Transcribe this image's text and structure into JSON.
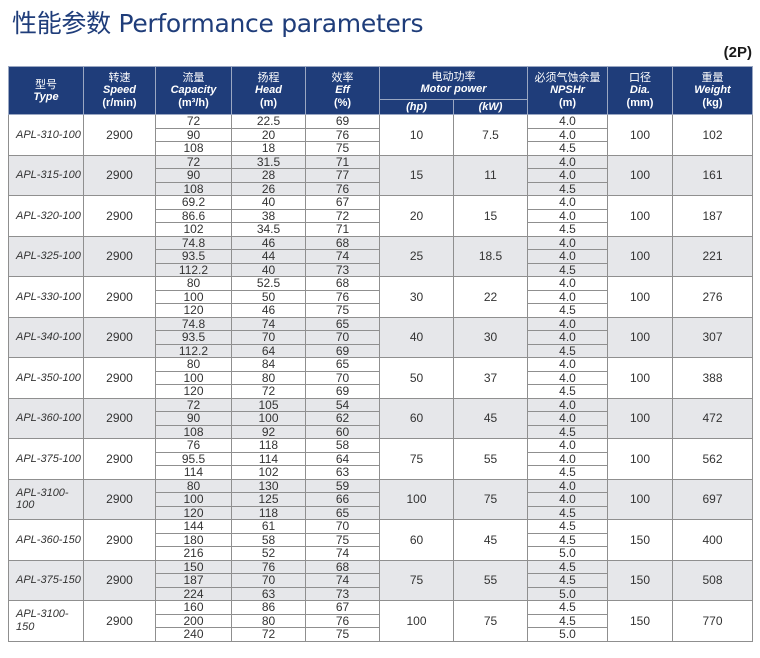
{
  "title": "性能参数 Performance parameters",
  "tag": "(2P)",
  "headers": {
    "type": {
      "cn": "型号",
      "en": "Type"
    },
    "speed": {
      "cn": "转速",
      "en": "Speed",
      "unit": "(r/min)"
    },
    "capacity": {
      "cn": "流量",
      "en": "Capacity",
      "unit": "(m³/h)"
    },
    "head": {
      "cn": "扬程",
      "en": "Head",
      "unit": "(m)"
    },
    "eff": {
      "cn": "效率",
      "en": "Eff",
      "unit": "(%)"
    },
    "motor": {
      "cn": "电动功率",
      "en": "Motor power",
      "unit_hp": "(hp)",
      "unit_kw": "(kW)"
    },
    "npsh": {
      "cn": "必须气蚀余量",
      "en": "NPSHr",
      "unit": "(m)"
    },
    "dia": {
      "cn": "口径",
      "en": "Dia.",
      "unit": "(mm)"
    },
    "weight": {
      "cn": "重量",
      "en": "Weight",
      "unit": "(kg)"
    }
  },
  "rows": [
    {
      "type": "APL-310-100",
      "speed": "2900",
      "capacity": [
        "72",
        "90",
        "108"
      ],
      "head": [
        "22.5",
        "20",
        "18"
      ],
      "eff": [
        "69",
        "76",
        "75"
      ],
      "hp": "10",
      "kw": "7.5",
      "npsh": [
        "4.0",
        "4.0",
        "4.5"
      ],
      "dia": "100",
      "weight": "102"
    },
    {
      "type": "APL-315-100",
      "speed": "2900",
      "capacity": [
        "72",
        "90",
        "108"
      ],
      "head": [
        "31.5",
        "28",
        "26"
      ],
      "eff": [
        "71",
        "77",
        "76"
      ],
      "hp": "15",
      "kw": "11",
      "npsh": [
        "4.0",
        "4.0",
        "4.5"
      ],
      "dia": "100",
      "weight": "161"
    },
    {
      "type": "APL-320-100",
      "speed": "2900",
      "capacity": [
        "69.2",
        "86.6",
        "102"
      ],
      "head": [
        "40",
        "38",
        "34.5"
      ],
      "eff": [
        "67",
        "72",
        "71"
      ],
      "hp": "20",
      "kw": "15",
      "npsh": [
        "4.0",
        "4.0",
        "4.5"
      ],
      "dia": "100",
      "weight": "187"
    },
    {
      "type": "APL-325-100",
      "speed": "2900",
      "capacity": [
        "74.8",
        "93.5",
        "112.2"
      ],
      "head": [
        "46",
        "44",
        "40"
      ],
      "eff": [
        "68",
        "74",
        "73"
      ],
      "hp": "25",
      "kw": "18.5",
      "npsh": [
        "4.0",
        "4.0",
        "4.5"
      ],
      "dia": "100",
      "weight": "221"
    },
    {
      "type": "APL-330-100",
      "speed": "2900",
      "capacity": [
        "80",
        "100",
        "120"
      ],
      "head": [
        "52.5",
        "50",
        "46"
      ],
      "eff": [
        "68",
        "76",
        "75"
      ],
      "hp": "30",
      "kw": "22",
      "npsh": [
        "4.0",
        "4.0",
        "4.5"
      ],
      "dia": "100",
      "weight": "276"
    },
    {
      "type": "APL-340-100",
      "speed": "2900",
      "capacity": [
        "74.8",
        "93.5",
        "112.2"
      ],
      "head": [
        "74",
        "70",
        "64"
      ],
      "eff": [
        "65",
        "70",
        "69"
      ],
      "hp": "40",
      "kw": "30",
      "npsh": [
        "4.0",
        "4.0",
        "4.5"
      ],
      "dia": "100",
      "weight": "307"
    },
    {
      "type": "APL-350-100",
      "speed": "2900",
      "capacity": [
        "80",
        "100",
        "120"
      ],
      "head": [
        "84",
        "80",
        "72"
      ],
      "eff": [
        "65",
        "70",
        "69"
      ],
      "hp": "50",
      "kw": "37",
      "npsh": [
        "4.0",
        "4.0",
        "4.5"
      ],
      "dia": "100",
      "weight": "388"
    },
    {
      "type": "APL-360-100",
      "speed": "2900",
      "capacity": [
        "72",
        "90",
        "108"
      ],
      "head": [
        "105",
        "100",
        "92"
      ],
      "eff": [
        "54",
        "62",
        "60"
      ],
      "hp": "60",
      "kw": "45",
      "npsh": [
        "4.0",
        "4.0",
        "4.5"
      ],
      "dia": "100",
      "weight": "472"
    },
    {
      "type": "APL-375-100",
      "speed": "2900",
      "capacity": [
        "76",
        "95.5",
        "114"
      ],
      "head": [
        "118",
        "114",
        "102"
      ],
      "eff": [
        "58",
        "64",
        "63"
      ],
      "hp": "75",
      "kw": "55",
      "npsh": [
        "4.0",
        "4.0",
        "4.5"
      ],
      "dia": "100",
      "weight": "562"
    },
    {
      "type": "APL-3100-100",
      "speed": "2900",
      "capacity": [
        "80",
        "100",
        "120"
      ],
      "head": [
        "130",
        "125",
        "118"
      ],
      "eff": [
        "59",
        "66",
        "65"
      ],
      "hp": "100",
      "kw": "75",
      "npsh": [
        "4.0",
        "4.0",
        "4.5"
      ],
      "dia": "100",
      "weight": "697"
    },
    {
      "type": "APL-360-150",
      "speed": "2900",
      "capacity": [
        "144",
        "180",
        "216"
      ],
      "head": [
        "61",
        "58",
        "52"
      ],
      "eff": [
        "70",
        "75",
        "74"
      ],
      "hp": "60",
      "kw": "45",
      "npsh": [
        "4.5",
        "4.5",
        "5.0"
      ],
      "dia": "150",
      "weight": "400"
    },
    {
      "type": "APL-375-150",
      "speed": "2900",
      "capacity": [
        "150",
        "187",
        "224"
      ],
      "head": [
        "76",
        "70",
        "63"
      ],
      "eff": [
        "68",
        "74",
        "73"
      ],
      "hp": "75",
      "kw": "55",
      "npsh": [
        "4.5",
        "4.5",
        "5.0"
      ],
      "dia": "150",
      "weight": "508"
    },
    {
      "type": "APL-3100-150",
      "speed": "2900",
      "capacity": [
        "160",
        "200",
        "240"
      ],
      "head": [
        "86",
        "80",
        "72"
      ],
      "eff": [
        "67",
        "76",
        "75"
      ],
      "hp": "100",
      "kw": "75",
      "npsh": [
        "4.5",
        "4.5",
        "5.0"
      ],
      "dia": "150",
      "weight": "770"
    }
  ]
}
